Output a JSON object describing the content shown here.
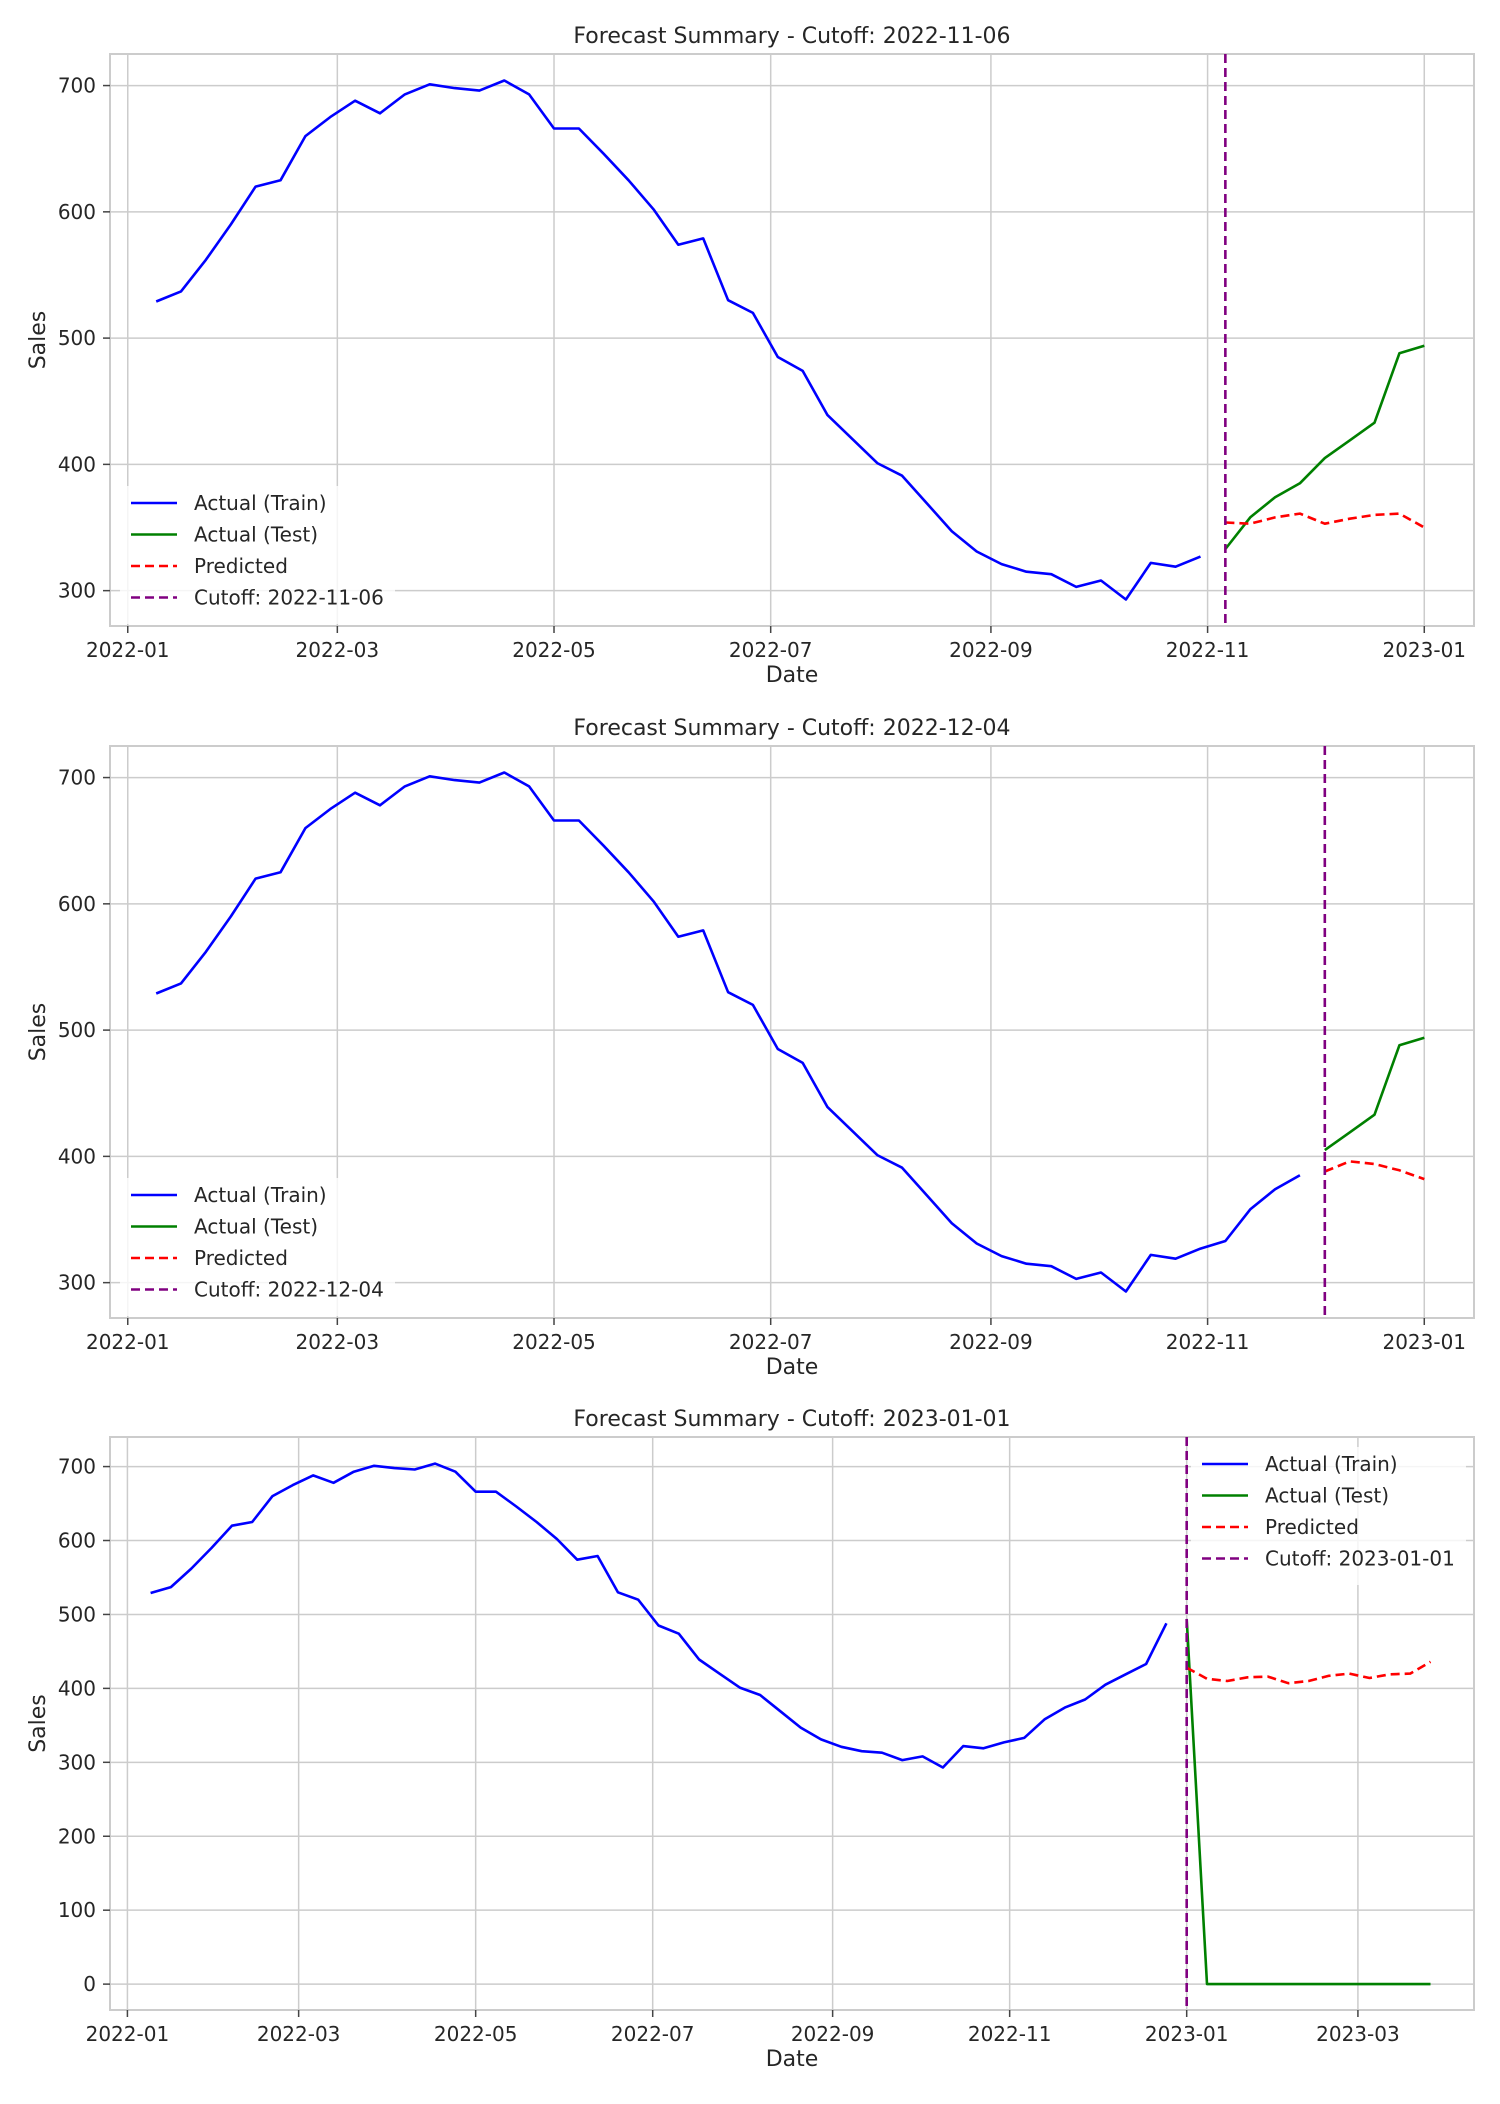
{
  "chart_data": [
    {
      "type": "line",
      "title": "Forecast Summary - Cutoff: 2022-11-06",
      "xlabel": "Date",
      "ylabel": "Sales",
      "xlim": [
        "2021-12-27",
        "2023-01-15"
      ],
      "ylim": [
        272,
        725
      ],
      "x_ticks": [
        "2022-01-01",
        "2022-03-01",
        "2022-05-01",
        "2022-07-01",
        "2022-09-01",
        "2022-11-01",
        "2023-01-01"
      ],
      "x_tick_labels": [
        "2022-01",
        "2022-03",
        "2022-05",
        "2022-07",
        "2022-09",
        "2022-11",
        "2023-01"
      ],
      "y_ticks": [
        300,
        400,
        500,
        600,
        700
      ],
      "grid": true,
      "legend_position": "lower-left",
      "cutoff": "2022-11-06",
      "series": [
        {
          "name": "Actual (Train)",
          "color": "#0000ff",
          "style": "solid",
          "start": "2022-01-09",
          "step_days": 7,
          "values": [
            529,
            537,
            562,
            590,
            620,
            625,
            660,
            675,
            688,
            678,
            693,
            701,
            698,
            696,
            704,
            693,
            666,
            666,
            646,
            625,
            602,
            574,
            579,
            530,
            520,
            485,
            474,
            439,
            420,
            401,
            391,
            369,
            347,
            331,
            321,
            315,
            313,
            303,
            308,
            293,
            322,
            319,
            327
          ]
        },
        {
          "name": "Actual (Test)",
          "color": "#008000",
          "style": "solid",
          "start": "2022-11-06",
          "step_days": 7,
          "values": [
            333,
            358,
            374,
            385,
            405,
            419,
            433,
            488,
            494
          ]
        },
        {
          "name": "Predicted",
          "color": "#ff0000",
          "style": "dashed",
          "start": "2022-11-06",
          "step_days": 7,
          "values": [
            354,
            353,
            358,
            361,
            353,
            357,
            360,
            361,
            350
          ]
        },
        {
          "name": "Cutoff: 2022-11-06",
          "color": "#800080",
          "style": "dashed",
          "kind": "vline"
        }
      ]
    },
    {
      "type": "line",
      "title": "Forecast Summary - Cutoff: 2022-12-04",
      "xlabel": "Date",
      "ylabel": "Sales",
      "xlim": [
        "2021-12-27",
        "2023-01-15"
      ],
      "ylim": [
        272,
        725
      ],
      "x_ticks": [
        "2022-01-01",
        "2022-03-01",
        "2022-05-01",
        "2022-07-01",
        "2022-09-01",
        "2022-11-01",
        "2023-01-01"
      ],
      "x_tick_labels": [
        "2022-01",
        "2022-03",
        "2022-05",
        "2022-07",
        "2022-09",
        "2022-11",
        "2023-01"
      ],
      "y_ticks": [
        300,
        400,
        500,
        600,
        700
      ],
      "grid": true,
      "legend_position": "lower-left",
      "cutoff": "2022-12-04",
      "series": [
        {
          "name": "Actual (Train)",
          "color": "#0000ff",
          "style": "solid",
          "start": "2022-01-09",
          "step_days": 7,
          "values": [
            529,
            537,
            562,
            590,
            620,
            625,
            660,
            675,
            688,
            678,
            693,
            701,
            698,
            696,
            704,
            693,
            666,
            666,
            646,
            625,
            602,
            574,
            579,
            530,
            520,
            485,
            474,
            439,
            420,
            401,
            391,
            369,
            347,
            331,
            321,
            315,
            313,
            303,
            308,
            293,
            322,
            319,
            327,
            333,
            358,
            374,
            385
          ]
        },
        {
          "name": "Actual (Test)",
          "color": "#008000",
          "style": "solid",
          "start": "2022-12-04",
          "step_days": 7,
          "values": [
            405,
            419,
            433,
            488,
            494
          ]
        },
        {
          "name": "Predicted",
          "color": "#ff0000",
          "style": "dashed",
          "start": "2022-12-04",
          "step_days": 7,
          "values": [
            388,
            396,
            394,
            389,
            382
          ]
        },
        {
          "name": "Cutoff: 2022-12-04",
          "color": "#800080",
          "style": "dashed",
          "kind": "vline"
        }
      ]
    },
    {
      "type": "line",
      "title": "Forecast Summary - Cutoff: 2023-01-01",
      "xlabel": "Date",
      "ylabel": "Sales",
      "xlim": [
        "2021-12-26",
        "2023-04-10"
      ],
      "ylim": [
        -35,
        740
      ],
      "x_ticks": [
        "2022-01-01",
        "2022-03-01",
        "2022-05-01",
        "2022-07-01",
        "2022-09-01",
        "2022-11-01",
        "2023-01-01",
        "2023-03-01"
      ],
      "x_tick_labels": [
        "2022-01",
        "2022-03",
        "2022-05",
        "2022-07",
        "2022-09",
        "2022-11",
        "2023-01",
        "2023-03"
      ],
      "y_ticks": [
        0,
        100,
        200,
        300,
        400,
        500,
        600,
        700
      ],
      "grid": true,
      "legend_position": "upper-right",
      "cutoff": "2023-01-01",
      "series": [
        {
          "name": "Actual (Train)",
          "color": "#0000ff",
          "style": "solid",
          "start": "2022-01-09",
          "step_days": 7,
          "values": [
            529,
            537,
            562,
            590,
            620,
            625,
            660,
            675,
            688,
            678,
            693,
            701,
            698,
            696,
            704,
            693,
            666,
            666,
            646,
            625,
            602,
            574,
            579,
            530,
            520,
            485,
            474,
            439,
            420,
            401,
            391,
            369,
            347,
            331,
            321,
            315,
            313,
            303,
            308,
            293,
            322,
            319,
            327,
            333,
            358,
            374,
            385,
            405,
            419,
            433,
            488
          ]
        },
        {
          "name": "Actual (Test)",
          "color": "#008000",
          "style": "solid",
          "start": "2023-01-01",
          "step_days": 7,
          "values": [
            494,
            0,
            0,
            0,
            0,
            0,
            0,
            0,
            0,
            0,
            0,
            0,
            0
          ]
        },
        {
          "name": "Predicted",
          "color": "#ff0000",
          "style": "dashed",
          "start": "2023-01-01",
          "step_days": 7,
          "values": [
            428,
            413,
            410,
            415,
            416,
            407,
            410,
            417,
            420,
            414,
            419,
            420,
            436
          ]
        },
        {
          "name": "Cutoff: 2023-01-01",
          "color": "#800080",
          "style": "dashed",
          "kind": "vline"
        }
      ]
    }
  ]
}
